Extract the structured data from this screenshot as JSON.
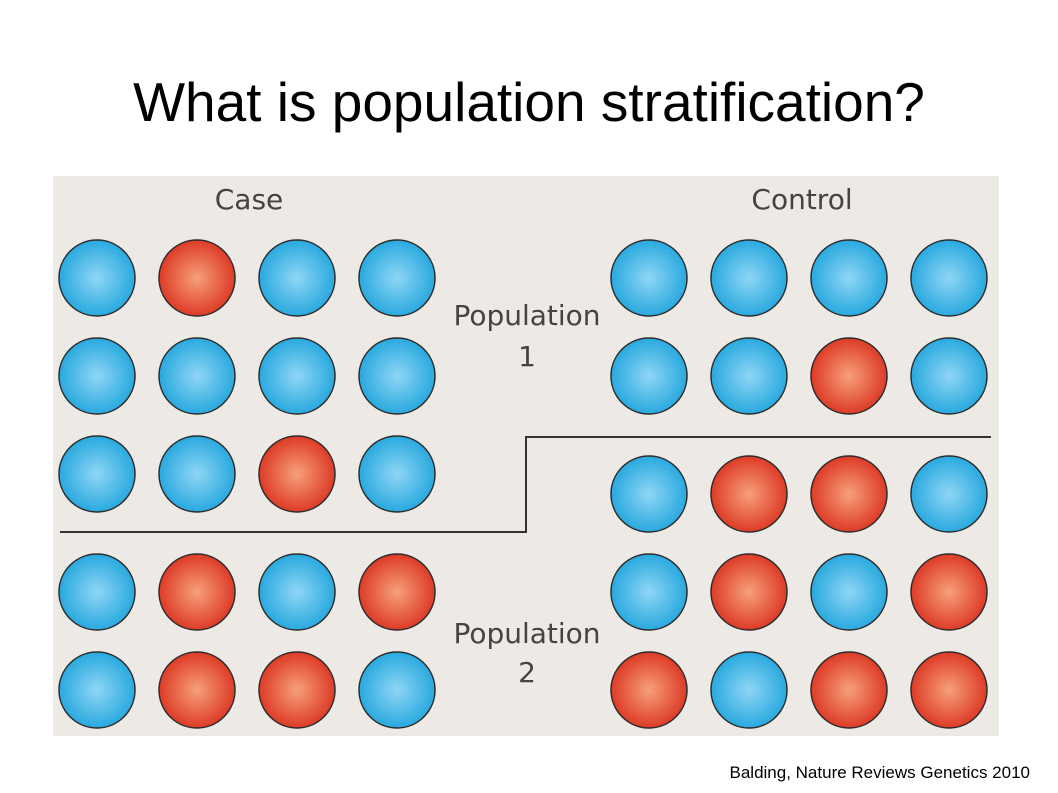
{
  "slide": {
    "title": "What is population stratification?",
    "citation": "Balding, Nature Reviews Genetics 2010"
  },
  "diagram": {
    "case_label": "Case",
    "control_label": "Control",
    "population_1_label": "Population",
    "population_1_number": "1",
    "population_2_label": "Population",
    "population_2_number": "2",
    "colors": {
      "background": "#ede9e5",
      "blue": "#29a9df",
      "blue_light": "#8fd6f5",
      "red": "#dd3b26",
      "red_light": "#f7a07a",
      "label_text": "#444444",
      "divider": "#333333"
    },
    "circle_grids": [
      {
        "group": "population-1-case",
        "rows": [
          [
            "blue",
            "red",
            "blue",
            "blue"
          ],
          [
            "blue",
            "blue",
            "blue",
            "blue"
          ],
          [
            "blue",
            "blue",
            "red",
            "blue"
          ]
        ]
      },
      {
        "group": "population-1-control",
        "rows": [
          [
            "blue",
            "blue",
            "blue",
            "blue"
          ],
          [
            "blue",
            "blue",
            "red",
            "blue"
          ]
        ]
      },
      {
        "group": "population-2-control",
        "rows": [
          [
            "blue",
            "red",
            "red",
            "blue"
          ],
          [
            "blue",
            "red",
            "blue",
            "red"
          ],
          [
            "red",
            "blue",
            "red",
            "red"
          ]
        ]
      },
      {
        "group": "population-2-case",
        "rows": [
          [
            "blue",
            "red",
            "blue",
            "red"
          ],
          [
            "blue",
            "red",
            "red",
            "blue"
          ]
        ]
      }
    ]
  }
}
